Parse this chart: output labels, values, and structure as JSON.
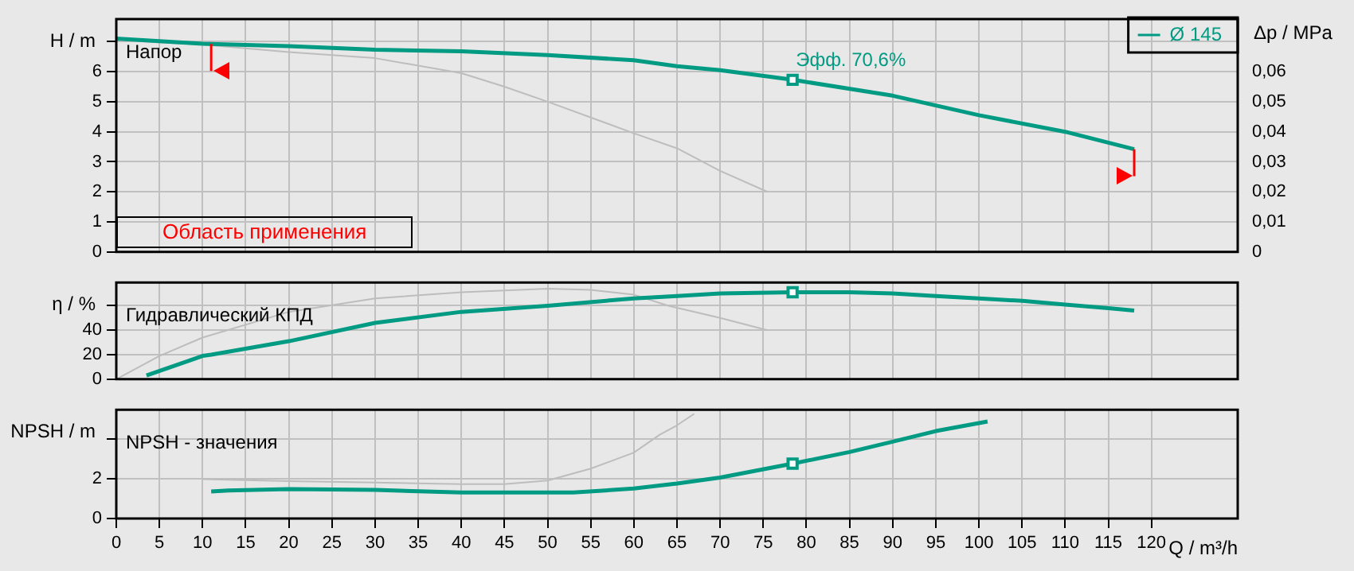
{
  "chart_data": [
    {
      "type": "line",
      "title": "Напор",
      "ylabel": "H / m",
      "y2label": "Δp / MPa",
      "xlim": [
        0,
        130
      ],
      "xticks": [
        0,
        5,
        10,
        15,
        20,
        25,
        30,
        35,
        40,
        45,
        50,
        55,
        60,
        65,
        70,
        75,
        80,
        85,
        90,
        95,
        100,
        105,
        110,
        115,
        120
      ],
      "ylim": [
        0,
        7.75
      ],
      "yticks": [
        0,
        1,
        2,
        3,
        4,
        5,
        6,
        {
          "value": 7,
          "label": null
        }
      ],
      "y2lim": [
        0,
        0.0775
      ],
      "y2ticks": [
        0,
        {
          "value": 0.01,
          "label": "0,01"
        },
        {
          "value": 0.02,
          "label": "0,02"
        },
        {
          "value": 0.03,
          "label": "0,03"
        },
        {
          "value": 0.04,
          "label": "0,04"
        },
        {
          "value": 0.05,
          "label": "0,05"
        },
        {
          "value": 0.06,
          "label": "0,06"
        }
      ],
      "grid": true,
      "legend": "top right",
      "tick_labels": "y",
      "series": [
        {
          "name": "Ø 145",
          "color": "#009b82",
          "x": [
            0,
            10,
            20,
            30,
            40,
            50,
            60,
            65,
            70,
            78.4,
            90,
            100,
            110,
            118
          ],
          "values": [
            7.1,
            6.93,
            6.85,
            6.73,
            6.68,
            6.55,
            6.38,
            6.18,
            6.05,
            5.73,
            5.2,
            4.55,
            4.0,
            3.42
          ]
        },
        {
          "color": "#bdbdbd",
          "x": [
            0,
            10,
            20,
            30,
            40,
            45,
            50,
            60,
            65,
            70,
            75.5
          ],
          "values": [
            7.05,
            6.9,
            6.65,
            6.45,
            5.95,
            5.5,
            5.0,
            3.95,
            3.45,
            2.7,
            2.0
          ]
        },
        {
          "type": "scatter",
          "marker": "square",
          "color": "#009b82",
          "x": [
            78.4
          ],
          "values": [
            5.73
          ]
        }
      ],
      "ref_lines": [
        {
          "axis": "x",
          "value": 11,
          "color": "#ff0000"
        },
        {
          "axis": "x",
          "value": 118,
          "color": "#ff0000"
        }
      ],
      "annotations": [
        {
          "text": "Эфф. 70,6%",
          "x": 78.4,
          "y": 5.73
        },
        "Область применения"
      ]
    },
    {
      "type": "line",
      "title": "Гидравлический КПД",
      "ylabel": "η / %",
      "xlim": [
        0,
        130
      ],
      "xticks": [
        0,
        5,
        10,
        15,
        20,
        25,
        30,
        35,
        40,
        45,
        50,
        55,
        60,
        65,
        70,
        75,
        80,
        85,
        90,
        95,
        100,
        105,
        110,
        115,
        120
      ],
      "ylim": [
        0,
        79
      ],
      "yticks": [
        0,
        20,
        40,
        {
          "value": 60,
          "label": null
        }
      ],
      "grid": true,
      "tick_labels": "y",
      "series": [
        {
          "color": "#009b82",
          "x": [
            3.5,
            10,
            11,
            20,
            30,
            40,
            50,
            60,
            65,
            70,
            78.4,
            85,
            90,
            95,
            100,
            105,
            110,
            115,
            118
          ],
          "values": [
            3,
            19,
            20,
            31,
            46,
            55,
            60,
            66,
            68,
            70,
            71,
            71,
            70,
            68,
            66,
            64,
            61,
            58,
            56
          ]
        },
        {
          "color": "#bdbdbd",
          "x": [
            0,
            5,
            10,
            20,
            30,
            40,
            50,
            55,
            60,
            64,
            70,
            75.5
          ],
          "values": [
            0,
            19,
            34,
            55,
            66,
            71,
            74,
            73,
            69,
            60,
            50,
            40
          ]
        },
        {
          "type": "scatter",
          "marker": "square",
          "color": "#009b82",
          "x": [
            78.4
          ],
          "values": [
            71
          ]
        }
      ]
    },
    {
      "type": "line",
      "title": "NPSH - значения",
      "ylabel": "NPSH / m",
      "xlabel": "Q / m³/h",
      "xlim": [
        0,
        130
      ],
      "xticks": [
        0,
        5,
        10,
        15,
        20,
        25,
        30,
        35,
        40,
        45,
        50,
        55,
        60,
        65,
        70,
        75,
        80,
        85,
        90,
        95,
        100,
        105,
        110,
        115,
        120
      ],
      "ylim": [
        0,
        5.45
      ],
      "yticks": [
        0,
        2,
        {
          "value": 4,
          "label": null
        }
      ],
      "grid": true,
      "series": [
        {
          "color": "#009b82",
          "x": [
            11,
            13,
            20,
            30,
            40,
            50,
            53,
            60,
            65,
            70,
            78.4,
            85,
            90,
            95,
            101
          ],
          "values": [
            1.35,
            1.4,
            1.47,
            1.43,
            1.3,
            1.3,
            1.3,
            1.5,
            1.75,
            2.05,
            2.75,
            3.33,
            3.85,
            4.38,
            4.86
          ]
        },
        {
          "color": "#bdbdbd",
          "x": [
            10,
            20,
            30,
            40,
            45,
            50,
            55,
            60,
            63,
            65,
            67
          ],
          "values": [
            1.97,
            1.87,
            1.8,
            1.72,
            1.72,
            1.9,
            2.5,
            3.3,
            4.2,
            4.67,
            5.25
          ]
        },
        {
          "type": "scatter",
          "marker": "square",
          "color": "#009b82",
          "x": [
            78.4
          ],
          "values": [
            2.75
          ]
        }
      ]
    }
  ]
}
